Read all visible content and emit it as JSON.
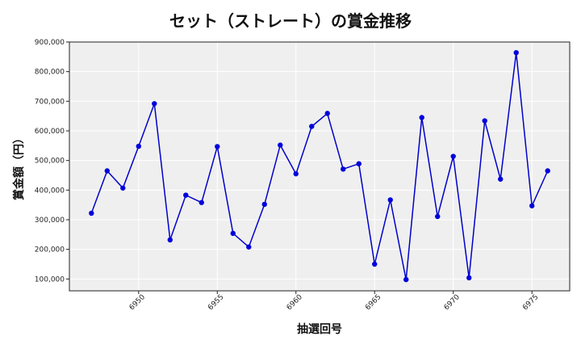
{
  "chart_data": {
    "type": "line",
    "title": "セット（ストレート）の賞金推移",
    "xlabel": "抽選回号",
    "ylabel": "賞金額（円）",
    "x": [
      6947,
      6948,
      6949,
      6950,
      6951,
      6952,
      6953,
      6954,
      6955,
      6956,
      6957,
      6958,
      6959,
      6960,
      6961,
      6962,
      6963,
      6964,
      6965,
      6966,
      6967,
      6968,
      6969,
      6970,
      6971,
      6972,
      6973,
      6974,
      6975,
      6976
    ],
    "values": [
      322000,
      465000,
      407000,
      548000,
      692000,
      232000,
      383000,
      358000,
      547000,
      254000,
      208000,
      352000,
      552000,
      455000,
      615000,
      659000,
      471000,
      489000,
      150000,
      367000,
      98000,
      645000,
      311000,
      514000,
      104000,
      634000,
      437000,
      864000,
      347000,
      465000
    ],
    "xlim": [
      6945.6,
      6977.4
    ],
    "ylim": [
      60000,
      900000
    ],
    "x_ticks": [
      "6950",
      "6955",
      "6960",
      "6965",
      "6970",
      "6975"
    ],
    "y_ticks": [
      "100,000",
      "200,000",
      "300,000",
      "400,000",
      "500,000",
      "600,000",
      "700,000",
      "800,000",
      "900,000"
    ],
    "grid": true,
    "line_color": "#0000cc",
    "marker_color": "#0000dd",
    "background": "#efefef"
  }
}
